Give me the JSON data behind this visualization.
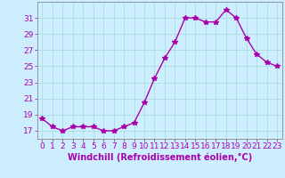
{
  "x": [
    0,
    1,
    2,
    3,
    4,
    5,
    6,
    7,
    8,
    9,
    10,
    11,
    12,
    13,
    14,
    15,
    16,
    17,
    18,
    19,
    20,
    21,
    22,
    23
  ],
  "y": [
    18.5,
    17.5,
    17.0,
    17.5,
    17.5,
    17.5,
    17.0,
    17.0,
    17.5,
    18.0,
    20.5,
    23.5,
    26.0,
    28.0,
    31.0,
    31.0,
    30.5,
    30.5,
    32.0,
    31.0,
    28.5,
    26.5,
    25.5,
    25.0
  ],
  "line_color": "#aa00aa",
  "marker": "*",
  "markersize": 4,
  "bg_color": "#cceeff",
  "grid_color": "#aadddd",
  "xlabel": "Windchill (Refroidissement éolien,°C)",
  "xlabel_fontsize": 7,
  "yticks": [
    17,
    19,
    21,
    23,
    25,
    27,
    29,
    31
  ],
  "ylim": [
    16.0,
    33.0
  ],
  "xlim": [
    -0.5,
    23.5
  ],
  "xtick_labels": [
    "0",
    "1",
    "2",
    "3",
    "4",
    "5",
    "6",
    "7",
    "8",
    "9",
    "10",
    "11",
    "12",
    "13",
    "14",
    "15",
    "16",
    "17",
    "18",
    "19",
    "20",
    "21",
    "22",
    "23"
  ],
  "tick_fontsize": 6.5,
  "linewidth": 1.0
}
